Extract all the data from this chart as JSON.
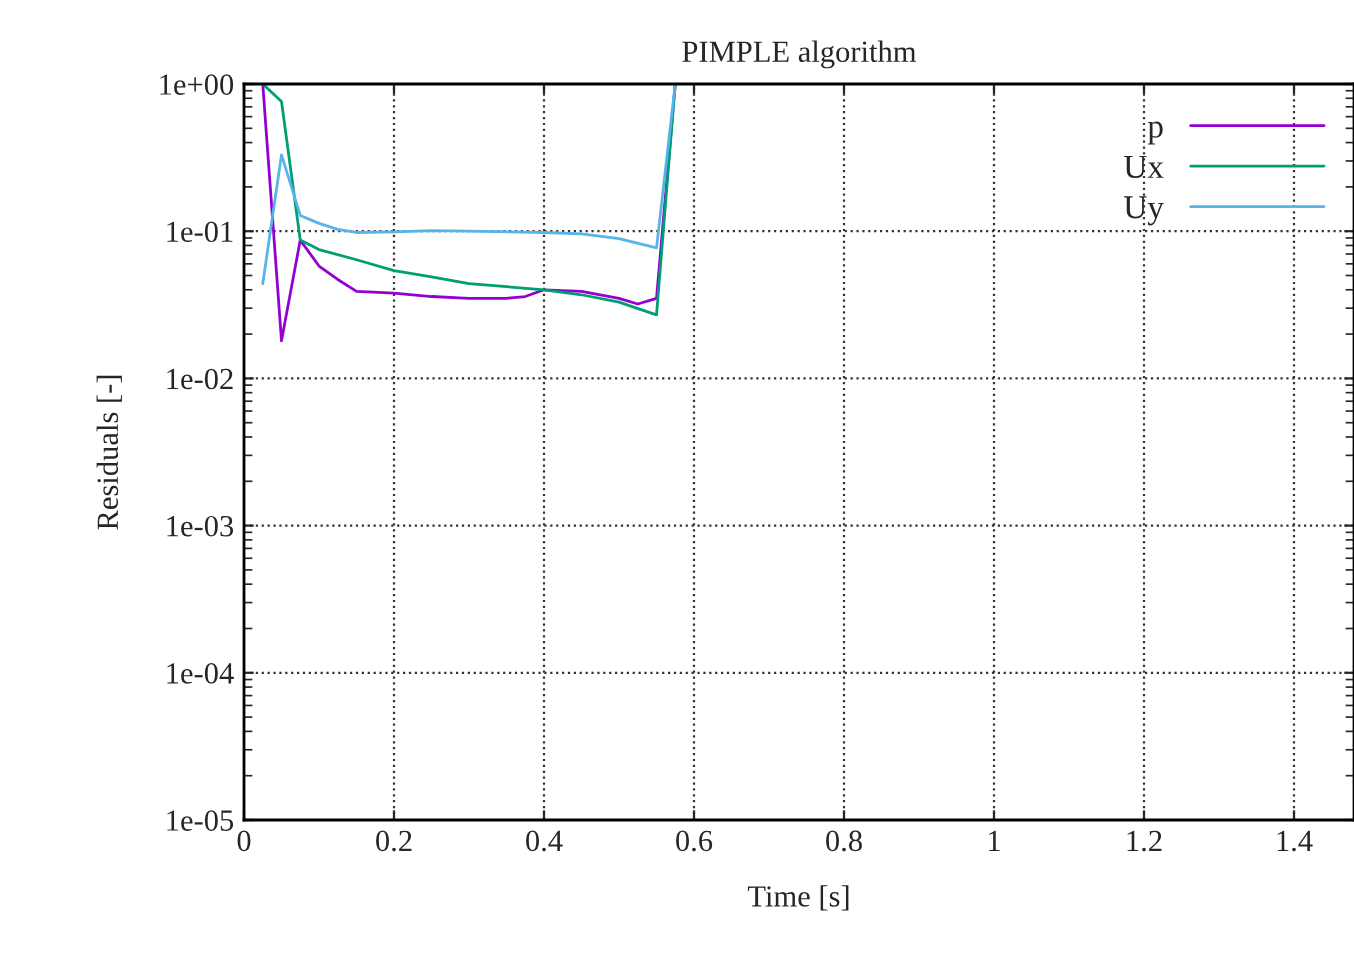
{
  "chart_data": {
    "type": "line",
    "title": "PIMPLE algorithm",
    "xlabel": "Time [s]",
    "ylabel": "Residuals [-]",
    "log": "y",
    "grid": true,
    "legend": "top right",
    "line_style": "solid",
    "marker": "none",
    "xlim": [
      0,
      1.48
    ],
    "xticks": [
      0,
      0.2,
      0.4,
      0.6,
      0.8,
      1,
      1.2,
      1.4
    ],
    "ylim": [
      1e-05,
      1
    ],
    "yticks": [
      {
        "value": 1e-05,
        "label": "1e-05"
      },
      {
        "value": 0.0001,
        "label": "1e-04"
      },
      {
        "value": 0.001,
        "label": "1e-03"
      },
      {
        "value": 0.01,
        "label": "1e-02"
      },
      {
        "value": 0.1,
        "label": "1e-01"
      },
      {
        "value": 1,
        "label": "1e+00"
      }
    ],
    "series": [
      {
        "name": "p",
        "color": "#9400d3",
        "x": [
          0.025,
          0.05,
          0.075,
          0.1,
          0.125,
          0.15,
          0.2,
          0.25,
          0.3,
          0.35,
          0.375,
          0.4,
          0.45,
          0.5,
          0.525,
          0.55,
          0.575
        ],
        "values": [
          1.0,
          0.018,
          0.087,
          0.058,
          0.047,
          0.039,
          0.038,
          0.036,
          0.035,
          0.035,
          0.036,
          0.04,
          0.039,
          0.035,
          0.032,
          0.035,
          1.0
        ]
      },
      {
        "name": "Ux",
        "color": "#009e73",
        "x": [
          0.025,
          0.05,
          0.075,
          0.1,
          0.15,
          0.2,
          0.25,
          0.3,
          0.35,
          0.4,
          0.45,
          0.5,
          0.55,
          0.575
        ],
        "values": [
          1.0,
          0.76,
          0.087,
          0.075,
          0.064,
          0.054,
          0.049,
          0.044,
          0.042,
          0.04,
          0.037,
          0.033,
          0.027,
          1.0
        ]
      },
      {
        "name": "Uy",
        "color": "#56b4e9",
        "x": [
          0.025,
          0.05,
          0.075,
          0.1,
          0.125,
          0.15,
          0.2,
          0.25,
          0.3,
          0.4,
          0.45,
          0.5,
          0.55,
          0.575
        ],
        "values": [
          0.044,
          0.33,
          0.128,
          0.113,
          0.103,
          0.098,
          0.099,
          0.101,
          0.1,
          0.098,
          0.096,
          0.089,
          0.077,
          1.0
        ]
      }
    ]
  }
}
